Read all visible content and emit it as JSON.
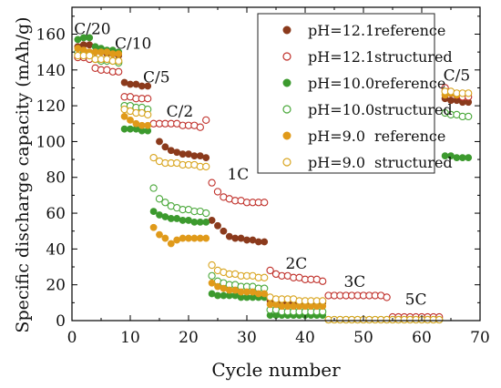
{
  "chart_data": {
    "type": "scatter",
    "title": "",
    "xlabel": "Cycle number",
    "ylabel": "Specific discharge capacity (mAh/g)",
    "xlim": [
      0,
      70
    ],
    "ylim": [
      0,
      175
    ],
    "xticks": [
      0,
      10,
      20,
      30,
      40,
      50,
      60,
      70
    ],
    "yticks": [
      0,
      20,
      40,
      60,
      80,
      100,
      120,
      140,
      160
    ],
    "grid": false,
    "legend_position": "top-right",
    "annotations": [
      {
        "text": "C/20",
        "x": 3.5,
        "y": 163
      },
      {
        "text": "C/10",
        "x": 10.5,
        "y": 155
      },
      {
        "text": "C/5",
        "x": 14.5,
        "y": 136
      },
      {
        "text": "C/2",
        "x": 18.5,
        "y": 117
      },
      {
        "text": "1C",
        "x": 28.5,
        "y": 82
      },
      {
        "text": "2C",
        "x": 38.5,
        "y": 32
      },
      {
        "text": "3C",
        "x": 48.5,
        "y": 22
      },
      {
        "text": "5C",
        "x": 59,
        "y": 12
      },
      {
        "text": "C/5",
        "x": 66,
        "y": 137
      }
    ],
    "series": [
      {
        "name": "pH=12.1",
        "tag": "reference",
        "color": "#8b3a1c",
        "filled": true,
        "x": [
          1,
          2,
          3,
          4,
          5,
          6,
          7,
          8,
          9,
          10,
          11,
          12,
          13,
          14,
          15,
          16,
          17,
          18,
          19,
          20,
          21,
          22,
          23,
          24,
          25,
          26,
          27,
          28,
          29,
          30,
          31,
          32,
          33,
          34,
          35,
          36,
          37,
          38,
          39,
          40,
          41,
          42,
          43,
          44,
          45,
          46,
          47,
          48,
          49,
          50,
          51,
          52,
          53,
          54,
          55,
          56,
          57,
          58,
          59,
          60,
          61,
          62,
          63,
          64,
          65,
          66,
          67,
          68
        ],
        "y": [
          153,
          154,
          154,
          150,
          150,
          149,
          149,
          148,
          133,
          132,
          132,
          131,
          131,
          110,
          100,
          97,
          95,
          94,
          93,
          93,
          92,
          92,
          91,
          56,
          53,
          50,
          47,
          46,
          46,
          45,
          45,
          44,
          44,
          11,
          11,
          10,
          10,
          10,
          10,
          10,
          10,
          10,
          10,
          0.5,
          0.5,
          0.5,
          0.5,
          0.5,
          0.5,
          0.5,
          0.5,
          0.5,
          0.5,
          0.5,
          1,
          1,
          1,
          1,
          1,
          1,
          1,
          1,
          1,
          124,
          123,
          123,
          122,
          122
        ]
      },
      {
        "name": "pH=12.1",
        "tag": "structured",
        "color": "#c0302a",
        "filled": false,
        "x": [
          1,
          2,
          3,
          4,
          5,
          6,
          7,
          8,
          9,
          10,
          11,
          12,
          13,
          14,
          15,
          16,
          17,
          18,
          19,
          20,
          21,
          22,
          23,
          24,
          25,
          26,
          27,
          28,
          29,
          30,
          31,
          32,
          33,
          34,
          35,
          36,
          37,
          38,
          39,
          40,
          41,
          42,
          43,
          44,
          45,
          46,
          47,
          48,
          49,
          50,
          51,
          52,
          53,
          54,
          55,
          56,
          57,
          58,
          59,
          60,
          61,
          62,
          63,
          64,
          65,
          66,
          67,
          68
        ],
        "y": [
          147,
          147,
          146,
          141,
          140,
          140,
          139,
          139,
          125,
          125,
          124,
          124,
          124,
          110,
          110,
          110,
          110,
          110,
          109,
          109,
          109,
          108,
          112,
          77,
          72,
          69,
          68,
          67,
          67,
          66,
          66,
          66,
          66,
          28,
          26,
          25,
          25,
          24,
          24,
          23,
          23,
          23,
          22,
          14,
          14,
          14,
          14,
          14,
          14,
          14,
          14,
          14,
          14,
          13,
          2,
          2,
          2,
          2,
          2,
          2,
          2,
          2,
          2,
          130,
          127,
          126,
          125,
          125
        ]
      },
      {
        "name": "pH=10.0",
        "tag": "reference",
        "color": "#3c9a2e",
        "filled": true,
        "x": [
          1,
          2,
          3,
          4,
          5,
          6,
          7,
          8,
          9,
          10,
          11,
          12,
          13,
          14,
          15,
          16,
          17,
          18,
          19,
          20,
          21,
          22,
          23,
          24,
          25,
          26,
          27,
          28,
          29,
          30,
          31,
          32,
          33,
          34,
          35,
          36,
          37,
          38,
          39,
          40,
          41,
          42,
          43,
          44,
          45,
          46,
          47,
          48,
          49,
          50,
          51,
          52,
          53,
          54,
          55,
          56,
          57,
          58,
          59,
          60,
          61,
          62,
          63,
          64,
          65,
          66,
          67,
          68
        ],
        "y": [
          157,
          158,
          158,
          153,
          152,
          151,
          151,
          150,
          107,
          107,
          107,
          106,
          106,
          61,
          59,
          58,
          57,
          57,
          56,
          56,
          55,
          55,
          55,
          15,
          14,
          14,
          14,
          14,
          13,
          13,
          13,
          13,
          13,
          3,
          3,
          3,
          3,
          3,
          3,
          3,
          3,
          3,
          3,
          0.5,
          0.5,
          0.5,
          0.5,
          0.5,
          0.5,
          0.5,
          0.5,
          0.5,
          0.5,
          0.5,
          0.5,
          0.5,
          0.5,
          0.5,
          0.5,
          0.5,
          0.5,
          0.5,
          0.5,
          92,
          92,
          91,
          91,
          91
        ]
      },
      {
        "name": "pH=10.0",
        "tag": "structured",
        "color": "#4aa83a",
        "filled": false,
        "x": [
          1,
          2,
          3,
          4,
          5,
          6,
          7,
          8,
          9,
          10,
          11,
          12,
          13,
          14,
          15,
          16,
          17,
          18,
          19,
          20,
          21,
          22,
          23,
          24,
          25,
          26,
          27,
          28,
          29,
          30,
          31,
          32,
          33,
          34,
          35,
          36,
          37,
          38,
          39,
          40,
          41,
          42,
          43,
          44,
          45,
          46,
          47,
          48,
          49,
          50,
          51,
          52,
          53,
          54,
          55,
          56,
          57,
          58,
          59,
          60,
          61,
          62,
          63,
          64,
          65,
          66,
          67,
          68
        ],
        "y": [
          150,
          150,
          149,
          146,
          145,
          145,
          145,
          144,
          120,
          120,
          119,
          119,
          118,
          74,
          68,
          66,
          64,
          63,
          62,
          62,
          61,
          61,
          60,
          25,
          22,
          21,
          20,
          20,
          19,
          19,
          19,
          18,
          18,
          6,
          6,
          5,
          5,
          5,
          5,
          5,
          5,
          5,
          5,
          0.5,
          0.5,
          0.5,
          0.5,
          0.5,
          0.5,
          0.5,
          0.5,
          0.5,
          0.5,
          0.5,
          0.5,
          0.5,
          0.5,
          0.5,
          0.5,
          0.5,
          0.5,
          0.5,
          0.5,
          116,
          115,
          115,
          114,
          114
        ]
      },
      {
        "name": "pH=9.0",
        "tag": "reference",
        "color": "#e09a1a",
        "filled": true,
        "x": [
          1,
          2,
          3,
          4,
          5,
          6,
          7,
          8,
          9,
          10,
          11,
          12,
          13,
          14,
          15,
          16,
          17,
          18,
          19,
          20,
          21,
          22,
          23,
          24,
          25,
          26,
          27,
          28,
          29,
          30,
          31,
          32,
          33,
          34,
          35,
          36,
          37,
          38,
          39,
          40,
          41,
          42,
          43,
          44,
          45,
          46,
          47,
          48,
          49,
          50,
          51,
          52,
          53,
          54,
          55,
          56,
          57,
          58,
          59,
          60,
          61,
          62,
          63,
          64,
          65,
          66,
          67,
          68
        ],
        "y": [
          152,
          151,
          150,
          150,
          150,
          150,
          149,
          149,
          114,
          112,
          110,
          109,
          109,
          52,
          48,
          46,
          43,
          45,
          46,
          46,
          46,
          46,
          46,
          21,
          19,
          18,
          17,
          17,
          16,
          16,
          16,
          15,
          15,
          9,
          9,
          8,
          8,
          8,
          8,
          8,
          8,
          8,
          8,
          0.5,
          0.5,
          0.5,
          0.5,
          0.5,
          0.5,
          0.5,
          0.5,
          0.5,
          0.5,
          0.5,
          0.5,
          0.5,
          0.5,
          0.5,
          0.5,
          0.5,
          0.5,
          0.5,
          0.5,
          126,
          127,
          126,
          127,
          127
        ]
      },
      {
        "name": "pH=9.0",
        "tag": "structured",
        "color": "#d9a520",
        "filled": false,
        "x": [
          1,
          2,
          3,
          4,
          5,
          6,
          7,
          8,
          9,
          10,
          11,
          12,
          13,
          14,
          15,
          16,
          17,
          18,
          19,
          20,
          21,
          22,
          23,
          24,
          25,
          26,
          27,
          28,
          29,
          30,
          31,
          32,
          33,
          34,
          35,
          36,
          37,
          38,
          39,
          40,
          41,
          42,
          43,
          44,
          45,
          46,
          47,
          48,
          49,
          50,
          51,
          52,
          53,
          54,
          55,
          56,
          57,
          58,
          59,
          60,
          61,
          62,
          63,
          64,
          65,
          66,
          67,
          68
        ],
        "y": [
          148,
          148,
          148,
          146,
          146,
          146,
          145,
          145,
          118,
          117,
          116,
          116,
          115,
          91,
          89,
          88,
          88,
          88,
          87,
          87,
          87,
          86,
          86,
          31,
          28,
          27,
          26,
          26,
          25,
          25,
          25,
          24,
          24,
          13,
          12,
          12,
          12,
          12,
          11,
          11,
          11,
          11,
          11,
          0.5,
          0.5,
          0.5,
          0.5,
          0.5,
          0.5,
          0.5,
          0.5,
          0.5,
          0.5,
          0.5,
          0.5,
          0.5,
          0.5,
          0.5,
          0.5,
          0.5,
          0.5,
          0.5,
          0.5,
          128,
          128,
          127,
          127,
          127
        ]
      }
    ]
  }
}
